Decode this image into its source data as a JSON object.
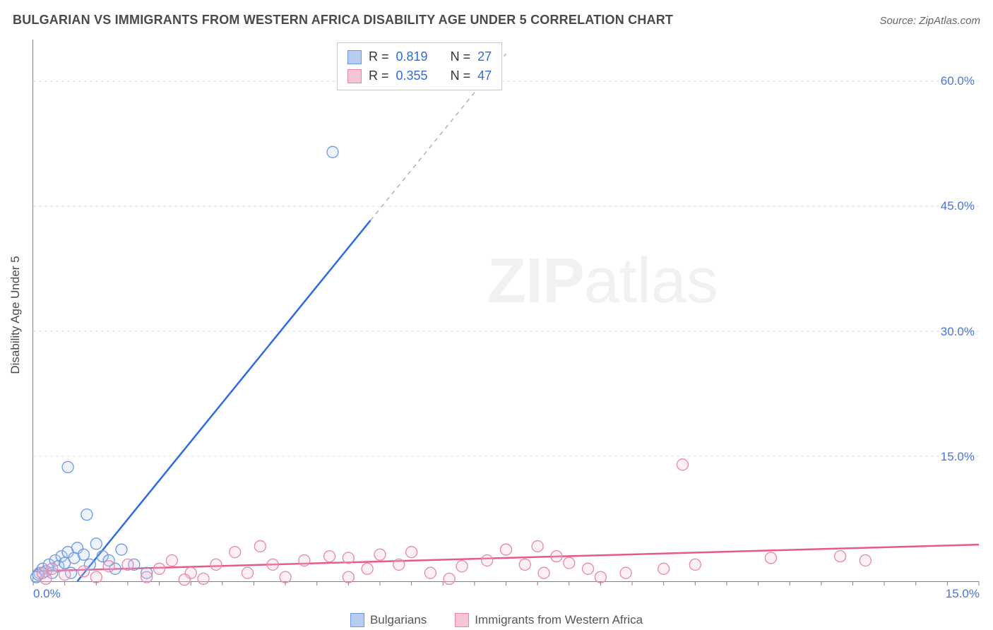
{
  "title": "BULGARIAN VS IMMIGRANTS FROM WESTERN AFRICA DISABILITY AGE UNDER 5 CORRELATION CHART",
  "source": "Source: ZipAtlas.com",
  "ylabel": "Disability Age Under 5",
  "watermark": {
    "bold": "ZIP",
    "rest": "atlas"
  },
  "chart": {
    "type": "scatter-with-regression",
    "background_color": "#ffffff",
    "grid_color": "#dcdcdc",
    "axis_color": "#808080",
    "tick_label_color": "#4a74d8",
    "xlim": [
      0,
      15
    ],
    "ylim": [
      0,
      65
    ],
    "yticks": [
      15,
      30,
      45,
      60
    ],
    "ytick_labels": [
      "15.0%",
      "30.0%",
      "45.0%",
      "60.0%"
    ],
    "xticks_major": [
      0,
      15
    ],
    "xtick_labels": [
      "0.0%",
      "15.0%"
    ],
    "xticks_minor_step": 0.5,
    "marker_radius": 8,
    "marker_stroke_width": 1.3,
    "marker_fill_opacity": 0.25,
    "line_width": 2.5,
    "label_fontsize": 17,
    "title_fontsize": 18
  },
  "stats_box": {
    "rows": [
      {
        "swatch_fill": "#b7ccf0",
        "swatch_border": "#6b98e2",
        "r_label": "R =",
        "r_value": "0.819",
        "n_label": "N =",
        "n_value": "27"
      },
      {
        "swatch_fill": "#f6c5d6",
        "swatch_border": "#e887a9",
        "r_label": "R =",
        "r_value": "0.355",
        "n_label": "N =",
        "n_value": "47"
      }
    ]
  },
  "legend": {
    "items": [
      {
        "fill": "#b7ccf0",
        "border": "#6b98e2",
        "label": "Bulgarians"
      },
      {
        "fill": "#f6c5d6",
        "border": "#e887a9",
        "label": "Immigrants from Western Africa"
      }
    ]
  },
  "series": [
    {
      "name": "Bulgarians",
      "color_stroke": "#6b98e2",
      "color_fill": "#b7ccf0",
      "trend_color": "#2f6be0",
      "trend_dash_extend": true,
      "regression": {
        "x1": 0.7,
        "y1": 0,
        "x2": 5.35,
        "y2": 43.3,
        "x2_dash": 7.5,
        "y2_dash": 63.3
      },
      "points": [
        [
          4.75,
          51.5
        ],
        [
          0.55,
          13.7
        ],
        [
          0.85,
          8.0
        ],
        [
          0.1,
          1.0
        ],
        [
          0.15,
          1.5
        ],
        [
          0.2,
          1.2
        ],
        [
          0.25,
          2.0
        ],
        [
          0.3,
          1.0
        ],
        [
          0.35,
          2.5
        ],
        [
          0.4,
          1.8
        ],
        [
          0.45,
          3.0
        ],
        [
          0.5,
          2.2
        ],
        [
          0.55,
          3.5
        ],
        [
          0.6,
          1.0
        ],
        [
          0.65,
          2.8
        ],
        [
          0.7,
          4.0
        ],
        [
          0.8,
          3.2
        ],
        [
          0.9,
          2.0
        ],
        [
          1.0,
          4.5
        ],
        [
          1.1,
          3.0
        ],
        [
          1.2,
          2.5
        ],
        [
          1.3,
          1.5
        ],
        [
          1.4,
          3.8
        ],
        [
          1.6,
          2.0
        ],
        [
          1.8,
          1.0
        ],
        [
          0.05,
          0.5
        ],
        [
          0.08,
          0.8
        ]
      ]
    },
    {
      "name": "Immigrants from Western Africa",
      "color_stroke": "#e887a9",
      "color_fill": "#f6c5d6",
      "trend_color": "#e65a8a",
      "trend_dash_extend": false,
      "regression": {
        "x1": 0,
        "y1": 1.2,
        "x2": 15,
        "y2": 4.4
      },
      "points": [
        [
          10.3,
          14.0
        ],
        [
          0.5,
          0.8
        ],
        [
          0.8,
          1.2
        ],
        [
          1.0,
          0.5
        ],
        [
          1.2,
          1.8
        ],
        [
          1.5,
          2.0
        ],
        [
          1.8,
          0.5
        ],
        [
          2.0,
          1.5
        ],
        [
          2.2,
          2.5
        ],
        [
          2.5,
          1.0
        ],
        [
          2.7,
          0.3
        ],
        [
          2.9,
          2.0
        ],
        [
          3.2,
          3.5
        ],
        [
          3.4,
          1.0
        ],
        [
          3.6,
          4.2
        ],
        [
          3.8,
          2.0
        ],
        [
          4.0,
          0.5
        ],
        [
          4.3,
          2.5
        ],
        [
          4.7,
          3.0
        ],
        [
          5.0,
          2.8
        ],
        [
          5.0,
          0.5
        ],
        [
          5.3,
          1.5
        ],
        [
          5.5,
          3.2
        ],
        [
          5.8,
          2.0
        ],
        [
          6.0,
          3.5
        ],
        [
          6.3,
          1.0
        ],
        [
          6.6,
          0.3
        ],
        [
          6.8,
          1.8
        ],
        [
          7.2,
          2.5
        ],
        [
          7.5,
          3.8
        ],
        [
          7.8,
          2.0
        ],
        [
          8.0,
          4.2
        ],
        [
          8.1,
          1.0
        ],
        [
          8.3,
          3.0
        ],
        [
          8.5,
          2.2
        ],
        [
          8.8,
          1.5
        ],
        [
          9.0,
          0.5
        ],
        [
          9.4,
          1.0
        ],
        [
          10.0,
          1.5
        ],
        [
          10.5,
          2.0
        ],
        [
          11.7,
          2.8
        ],
        [
          12.8,
          3.0
        ],
        [
          13.2,
          2.5
        ],
        [
          0.3,
          1.5
        ],
        [
          0.2,
          0.3
        ],
        [
          0.15,
          1.0
        ],
        [
          2.4,
          0.2
        ]
      ]
    }
  ]
}
